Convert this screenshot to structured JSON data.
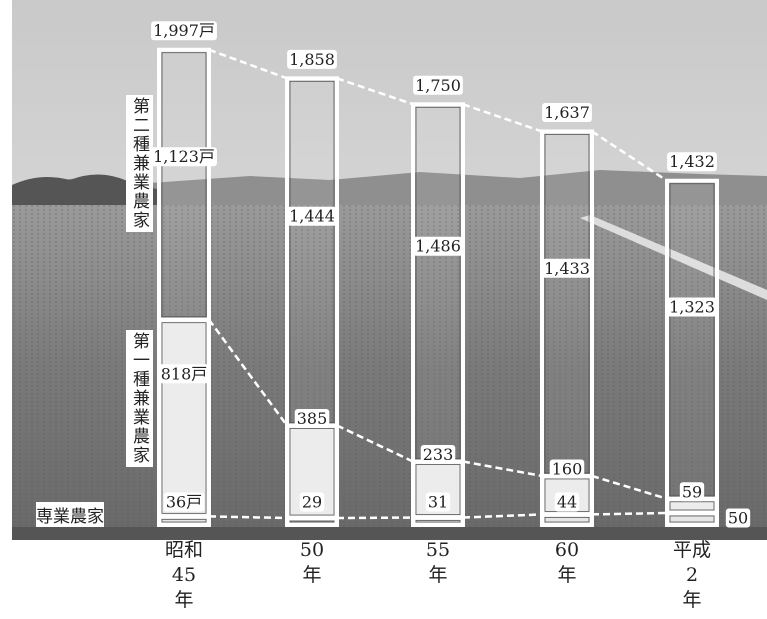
{
  "chart_data": {
    "type": "stacked-bar",
    "categories": [
      "昭和\n45\n年",
      "50\n年",
      "55\n年",
      "60\n年",
      "平成\n2\n年"
    ],
    "series": [
      {
        "name": "専業農家",
        "color": "#e6e6e6",
        "values": [
          36,
          29,
          31,
          44,
          50
        ],
        "value_labels": [
          "36戸",
          "29",
          "31",
          "44",
          "50"
        ]
      },
      {
        "name": "第一種兼業農家",
        "color": "#ececec",
        "values": [
          818,
          385,
          233,
          160,
          59
        ],
        "value_labels": [
          "818戸",
          "385",
          "233",
          "160",
          "59"
        ]
      },
      {
        "name": "第二種兼業農家",
        "color": "#ffffff",
        "values": [
          1123,
          1444,
          1486,
          1433,
          1323
        ],
        "value_labels": [
          "1,123戸",
          "1,444",
          "1,486",
          "1,433",
          "1,323"
        ]
      }
    ],
    "totals": {
      "values": [
        1997,
        1858,
        1750,
        1637,
        1432
      ],
      "value_labels": [
        "1,997戸",
        "1,858",
        "1,750",
        "1,637",
        "1,432"
      ]
    }
  }
}
